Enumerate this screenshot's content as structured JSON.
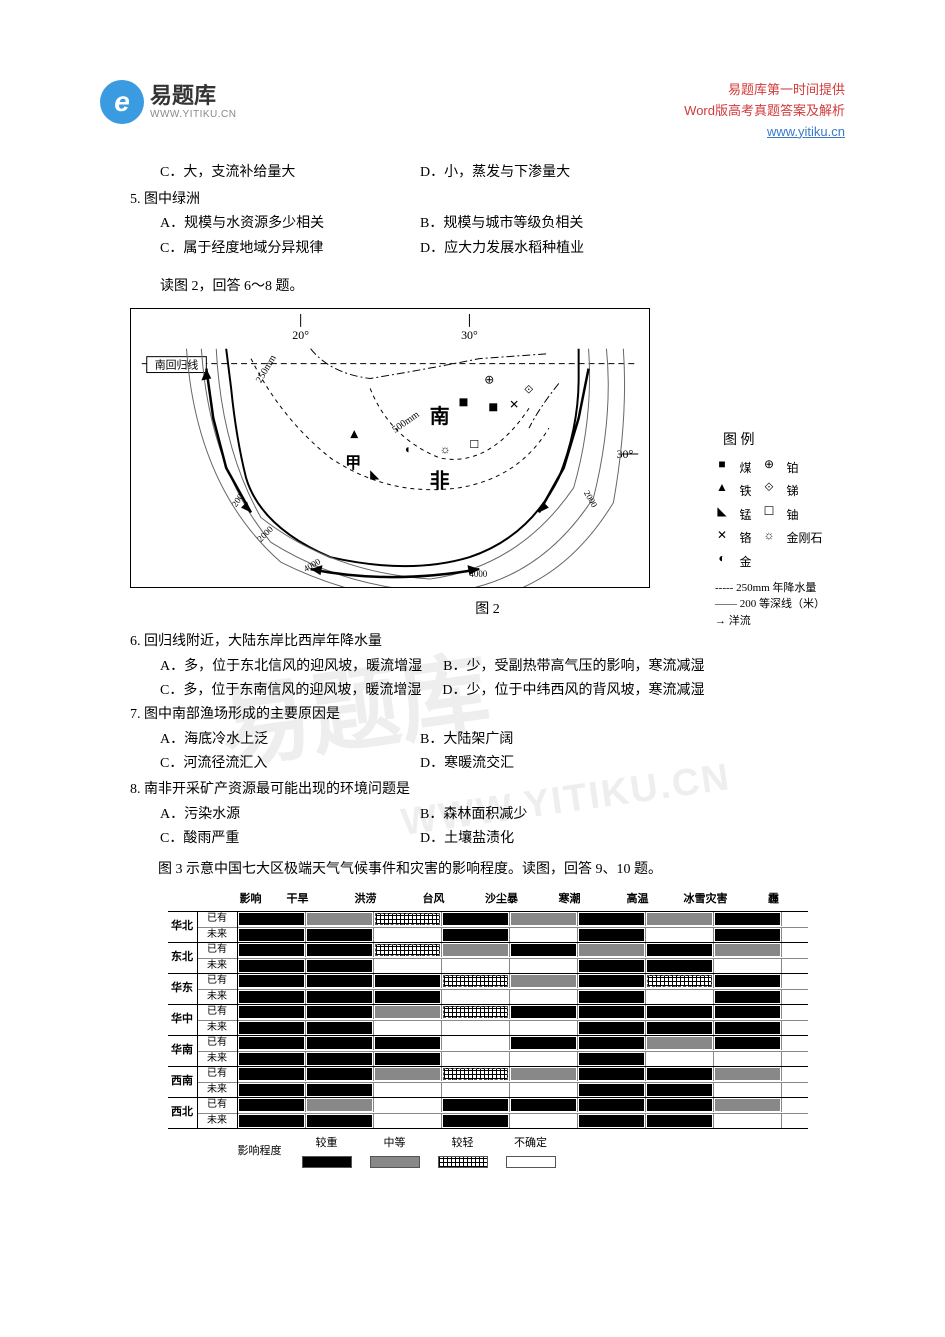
{
  "header": {
    "logo_letter": "e",
    "logo_name": "易题库",
    "logo_url": "WWW.YITIKU.CN",
    "right_line1": "易题库第一时间提供",
    "right_line2": "Word版高考真题答案及解析",
    "right_url": "www.yitiku.cn"
  },
  "q4_opts": {
    "C": "C．大，支流补给量大",
    "D": "D．小，蒸发与下渗量大"
  },
  "q5": {
    "stem": "5. 图中绿洲",
    "A": "A．规模与水资源多少相关",
    "B": "B．规模与城市等级负相关",
    "C": "C．属于经度地域分异规律",
    "D": "D．应大力发展水稻种植业"
  },
  "instr1": "读图 2，回答 6～8 题。",
  "fig2": {
    "caption": "图 2",
    "labels": {
      "lon20": "20°",
      "lon30": "30°",
      "lat30": "30°",
      "tropic": "南回归线",
      "nan": "南",
      "fei": "非",
      "jia": "甲",
      "d200": "200",
      "d2000": "2000",
      "d4000": "4000",
      "r250": "250mm",
      "r500": "500mm"
    },
    "legend_title": "图  例",
    "legend": [
      {
        "sym": "■",
        "label": "煤"
      },
      {
        "sym": "⊕",
        "label": "铂"
      },
      {
        "sym": "▲",
        "label": "铁"
      },
      {
        "sym": "⟐",
        "label": "锑"
      },
      {
        "sym": "◣",
        "label": "锰"
      },
      {
        "sym": "☐",
        "label": "铀"
      },
      {
        "sym": "✕",
        "label": "铬"
      },
      {
        "sym": "☼",
        "label": "金刚石"
      },
      {
        "sym": "◐",
        "label": "金"
      }
    ],
    "legend_lines": [
      {
        "text": "----- 250mm 年降水量"
      },
      {
        "text": "—— 200 等深线（米）"
      },
      {
        "text": "→ 洋流",
        "arrow": true
      }
    ]
  },
  "q6": {
    "stem": "6. 回归线附近，大陆东岸比西岸年降水量",
    "A": "A．多，位于东北信风的迎风坡，暖流增湿",
    "B": "B．少，受副热带高气压的影响，寒流减湿",
    "C": "C．多，位于东南信风的迎风坡，暖流增湿",
    "D": "D．少，位于中纬西风的背风坡，寒流减湿"
  },
  "q7": {
    "stem": "7. 图中南部渔场形成的主要原因是",
    "A": "A．海底冷水上泛",
    "B": "B．大陆架广阔",
    "C": "C．河流径流汇入",
    "D": "D．寒暖流交汇"
  },
  "q8": {
    "stem": "8. 南非开采矿产资源最可能出现的环境问题是",
    "A": "A．污染水源",
    "B": "B．森林面积减少",
    "C": "C．酸雨严重",
    "D": "D．土壤盐渍化"
  },
  "instr2": "图 3 示意中国七大区极端天气气候事件和灾害的影响程度。读图，回答 9、10 题。",
  "chart3": {
    "row_header": "影响",
    "hazards": [
      "干旱",
      "洪涝",
      "台风",
      "沙尘暴",
      "寒潮",
      "高温",
      "冰雪灾害",
      "霾"
    ],
    "subrows": [
      "已有",
      "未来"
    ],
    "regions": [
      "华北",
      "东北",
      "华东",
      "华中",
      "华南",
      "西南",
      "西北"
    ],
    "legend_label": "影响程度",
    "legend_levels": [
      "较重",
      "中等",
      "较轻",
      "不确定"
    ],
    "levels_map": {
      "较重": "heavy",
      "中等": "medium",
      "较轻": "light",
      "不确定": "none"
    },
    "data": {
      "华北": {
        "已有": [
          "heavy",
          "medium",
          "light",
          "heavy",
          "medium",
          "heavy",
          "medium",
          "heavy"
        ],
        "未来": [
          "heavy",
          "heavy",
          "none",
          "heavy",
          "none",
          "heavy",
          "none",
          "heavy"
        ]
      },
      "东北": {
        "已有": [
          "heavy",
          "heavy",
          "light",
          "medium",
          "heavy",
          "medium",
          "heavy",
          "medium"
        ],
        "未来": [
          "heavy",
          "heavy",
          "none",
          "none",
          "none",
          "heavy",
          "heavy",
          "none"
        ]
      },
      "华东": {
        "已有": [
          "heavy",
          "heavy",
          "heavy",
          "light",
          "medium",
          "heavy",
          "light",
          "heavy"
        ],
        "未来": [
          "heavy",
          "heavy",
          "heavy",
          "none",
          "none",
          "heavy",
          "none",
          "heavy"
        ]
      },
      "华中": {
        "已有": [
          "heavy",
          "heavy",
          "medium",
          "light",
          "heavy",
          "heavy",
          "heavy",
          "heavy"
        ],
        "未来": [
          "heavy",
          "heavy",
          "none",
          "none",
          "none",
          "heavy",
          "heavy",
          "heavy"
        ]
      },
      "华南": {
        "已有": [
          "heavy",
          "heavy",
          "heavy",
          "none",
          "heavy",
          "heavy",
          "medium",
          "heavy"
        ],
        "未来": [
          "heavy",
          "heavy",
          "heavy",
          "none",
          "none",
          "heavy",
          "none",
          "none"
        ]
      },
      "西南": {
        "已有": [
          "heavy",
          "heavy",
          "medium",
          "light",
          "medium",
          "heavy",
          "heavy",
          "medium"
        ],
        "未来": [
          "heavy",
          "heavy",
          "none",
          "none",
          "none",
          "heavy",
          "heavy",
          "none"
        ]
      },
      "西北": {
        "已有": [
          "heavy",
          "medium",
          "none",
          "heavy",
          "heavy",
          "heavy",
          "heavy",
          "medium"
        ],
        "未来": [
          "heavy",
          "heavy",
          "none",
          "heavy",
          "none",
          "heavy",
          "heavy",
          "none"
        ]
      }
    }
  },
  "watermark": {
    "cn": "易题库",
    "en": "WWW.YITIKU.CN"
  }
}
